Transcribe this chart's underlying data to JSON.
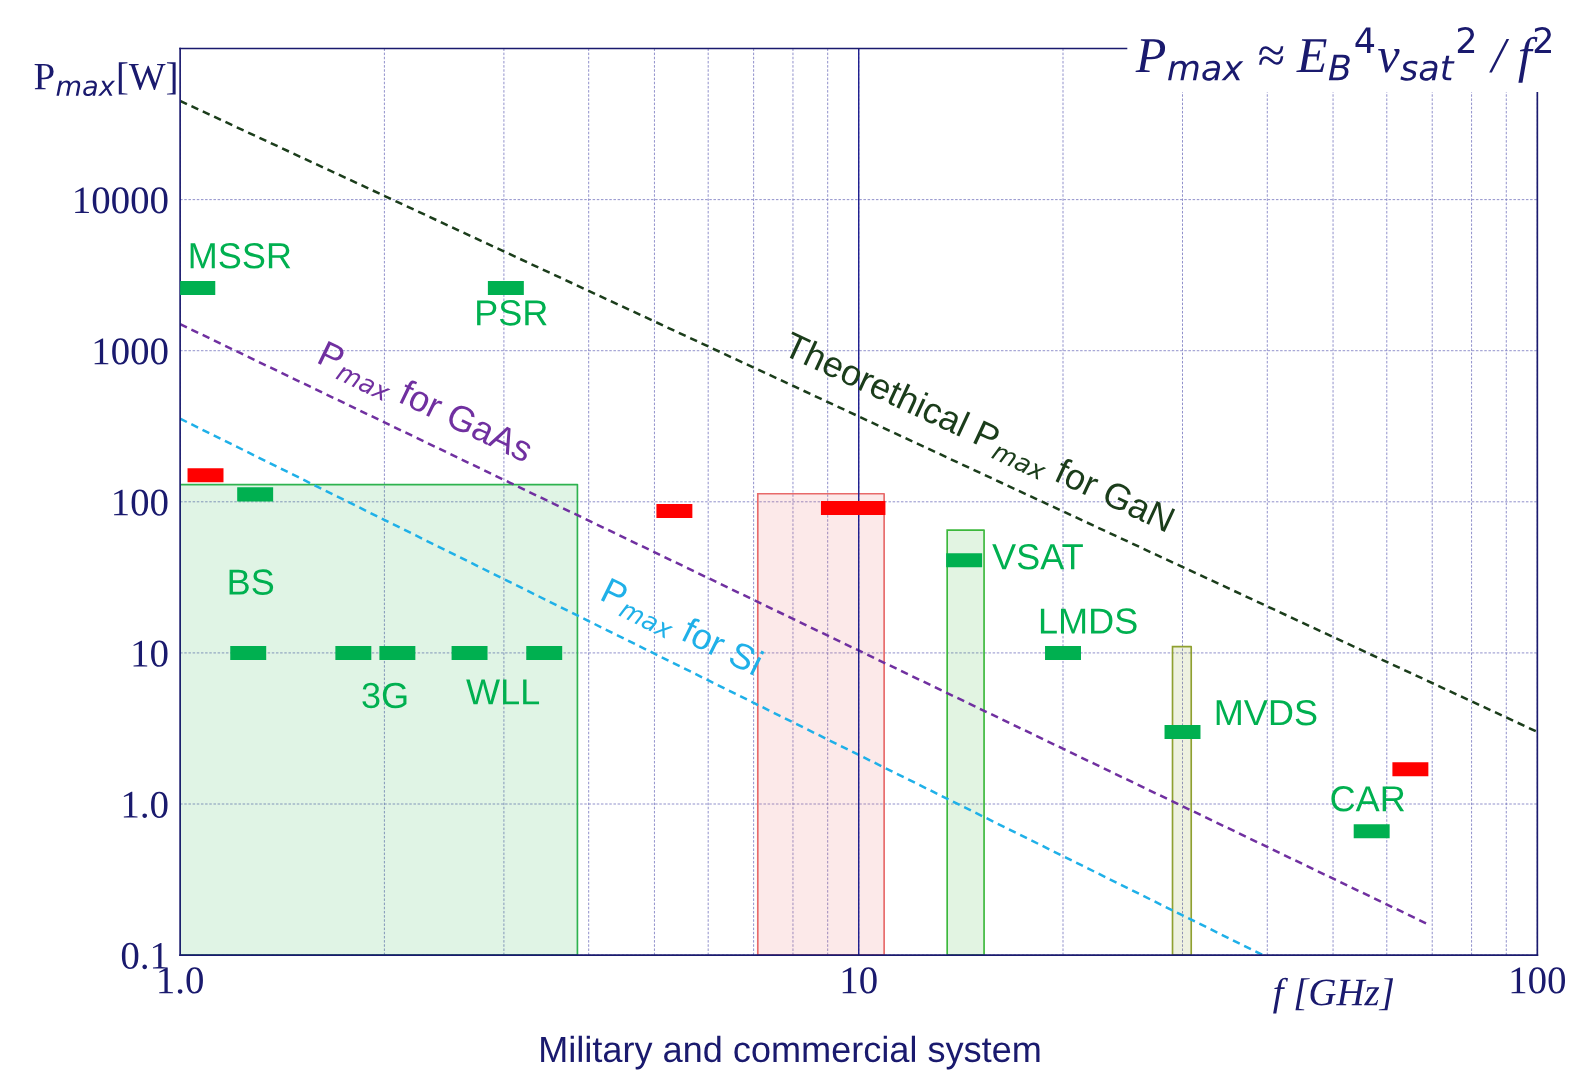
{
  "chart_data": {
    "type": "scatter",
    "xlabel": "f [GHz]",
    "ylabel": "P$_{max}$[W]",
    "log": "xy",
    "grid": true,
    "xlim": [
      1,
      100
    ],
    "ylim": [
      0.1,
      100000
    ],
    "xticks": [
      {
        "value": 1,
        "label": "1.0"
      },
      {
        "value": 2,
        "label": null
      },
      {
        "value": 3,
        "label": null
      },
      {
        "value": 4,
        "label": null
      },
      {
        "value": 5,
        "label": null
      },
      {
        "value": 6,
        "label": null
      },
      {
        "value": 7,
        "label": null
      },
      {
        "value": 8,
        "label": null
      },
      {
        "value": 9,
        "label": null
      },
      10,
      {
        "value": 20,
        "label": null
      },
      {
        "value": 30,
        "label": null
      },
      {
        "value": 40,
        "label": null
      },
      {
        "value": 50,
        "label": null
      },
      {
        "value": 60,
        "label": null
      },
      {
        "value": 70,
        "label": null
      },
      {
        "value": 80,
        "label": null
      },
      {
        "value": 90,
        "label": null
      },
      100
    ],
    "yticks": [
      0.1,
      {
        "value": 1,
        "label": "1.0"
      },
      10,
      100,
      1000,
      10000
    ],
    "series": [
      {
        "type": "area",
        "color": "#2eb34f",
        "x": [
          1.0,
          3.85
        ],
        "values": [
          130,
          130
        ]
      },
      {
        "type": "area",
        "color": "#e86a6a",
        "x": [
          7.1,
          10.9
        ],
        "values": [
          113,
          113
        ]
      },
      {
        "type": "area",
        "color": "#3cb83c",
        "x": [
          13.5,
          15.3
        ],
        "values": [
          65,
          65
        ]
      },
      {
        "type": "area",
        "color": "#8fa030",
        "x": [
          29.0,
          30.9
        ],
        "values": [
          11,
          11
        ]
      },
      {
        "type": "line",
        "color": "#1b3d1b",
        "line_style": "dashed",
        "x": [
          1,
          100
        ],
        "values": [
          45000,
          3.0
        ]
      },
      {
        "type": "line",
        "color": "#7030a0",
        "line_style": "dashed",
        "x": [
          1,
          69
        ],
        "values": [
          1500,
          0.16
        ]
      },
      {
        "type": "line",
        "color": "#1fb0e8",
        "line_style": "dashed",
        "x": [
          1,
          39.4
        ],
        "values": [
          355,
          0.1
        ]
      },
      {
        "color": "#ff0000",
        "marker": "square",
        "x": [
          1.09,
          5.35,
          9.35,
          10.3,
          65
        ],
        "values": [
          150,
          87,
          91,
          91,
          1.7
        ]
      },
      {
        "color": "#00b050",
        "marker": "square",
        "x": [
          1.06,
          3.02,
          1.29,
          1.26,
          1.8,
          2.09,
          2.67,
          3.44,
          14.3,
          20,
          30,
          57
        ],
        "values": [
          2600,
          2600,
          112,
          10,
          10,
          10,
          10,
          10,
          41,
          10,
          3.0,
          0.66
        ]
      }
    ],
    "ref_lines": [
      {
        "axis": "x",
        "value": 10,
        "color": "#1a1a8c",
        "line_style": "solid"
      }
    ],
    "annotations": [
      "P$_{max}$ ≈ E$_{B}$$^{4}$v$_{sat}$$^{2}$ / f$^{2}$",
      "Military and commercial system",
      "MSSR",
      "PSR",
      "BS",
      "3G",
      "WLL",
      "VSAT",
      "LMDS",
      "MVDS",
      "CAR",
      {
        "text": "Theorethical P$_{max}$ for GaN",
        "x": 14.3,
        "y": 174
      },
      {
        "text": "P$_{max}$ for GaAs",
        "x": 2.18,
        "y": 279
      },
      {
        "text": "P$_{max}$ for Si",
        "x": 5.2,
        "y": 9.06
      }
    ]
  }
}
